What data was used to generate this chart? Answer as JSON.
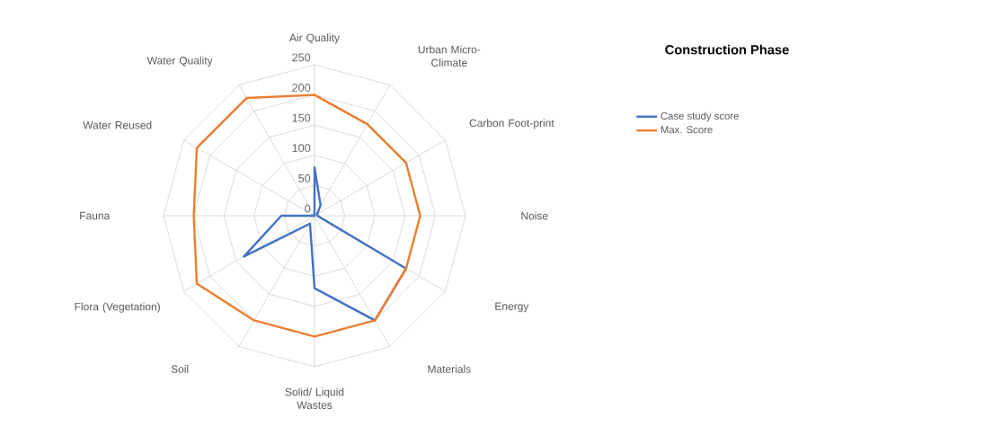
{
  "chart_data": {
    "type": "radar",
    "title": "Construction Phase",
    "categories": [
      "Air Quality",
      "Urban Micro-Climate",
      "Carbon Foot-print",
      "Noise",
      "Energy",
      "Materials",
      "Solid/ Liquid Wastes",
      "Soil",
      "Flora (Vegetation)",
      "Fauna",
      "Water Reused",
      "Water Quality"
    ],
    "series": [
      {
        "name": "Case study score",
        "color": "#4472c4",
        "values": [
          80,
          20,
          5,
          5,
          175,
          200,
          120,
          15,
          135,
          55,
          0,
          0
        ]
      },
      {
        "name": "Max. Score",
        "color": "#ed7d31",
        "values": [
          200,
          175,
          175,
          175,
          175,
          200,
          200,
          200,
          225,
          200,
          225,
          225
        ]
      }
    ],
    "ylim": [
      0,
      250
    ],
    "yticks": [
      0,
      50,
      100,
      150,
      200,
      250
    ],
    "grid": true,
    "legend": "right"
  }
}
